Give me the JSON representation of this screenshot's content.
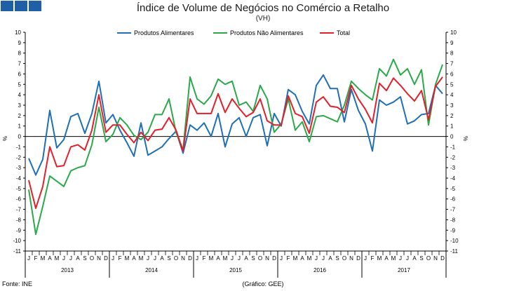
{
  "page": {
    "title": "Índice de Volume de Negócios no Comércio a Retalho",
    "subtitle": "(VH)",
    "source": "Fonte: INE",
    "credit": "(Gráfico: GEE)",
    "logo_color": "#1f5fa8"
  },
  "chart_data": {
    "type": "line",
    "title": "Índice de Volume de Negócios no Comércio a Retalho",
    "subtitle": "(VH)",
    "ylabel_left": "%",
    "ylabel_right": "%",
    "ylim": [
      -11,
      10
    ],
    "yticks": [
      -11,
      -10,
      -9,
      -8,
      -7,
      -6,
      -5,
      -4,
      -3,
      -2,
      -1,
      0,
      1,
      2,
      3,
      4,
      5,
      6,
      7,
      8,
      9,
      10
    ],
    "grid": false,
    "legend_position": "top",
    "month_labels": [
      "J",
      "F",
      "M",
      "A",
      "M",
      "J",
      "J",
      "A",
      "S",
      "O",
      "N",
      "D"
    ],
    "years": [
      "2013",
      "2014",
      "2015",
      "2016",
      "2017"
    ],
    "series": [
      {
        "name": "Produtos Alimentares",
        "color": "#1f6fb5",
        "values": [
          -2.1,
          -3.7,
          -2.2,
          2.5,
          -1.1,
          -0.3,
          1.9,
          2.2,
          0.3,
          2.2,
          5.3,
          1.3,
          2.1,
          0.6,
          -0.6,
          -1.9,
          1.3,
          -1.8,
          -1.4,
          -1.0,
          -0.2,
          0.5,
          -1.6,
          1.1,
          0.6,
          1.3,
          0.0,
          2.2,
          -1.0,
          1.2,
          1.8,
          0.0,
          1.8,
          2.1,
          -0.9,
          2.2,
          1.0,
          4.5,
          4.0,
          2.4,
          1.2,
          4.9,
          5.9,
          4.6,
          4.6,
          1.4,
          4.5,
          2.5,
          1.2,
          -1.4,
          3.5,
          3.0,
          3.3,
          3.8,
          1.2,
          1.5,
          2.1,
          2.2,
          4.9,
          4.1
        ]
      },
      {
        "name": "Produtos Não Alimentares",
        "color": "#2aa84a",
        "values": [
          -5.1,
          -9.4,
          -6.7,
          -3.8,
          -4.3,
          -4.8,
          -3.3,
          -3.0,
          -2.8,
          -0.8,
          2.8,
          -0.5,
          0.2,
          1.8,
          1.1,
          0.1,
          -0.3,
          0.4,
          2.1,
          2.1,
          3.6,
          0.4,
          -1.3,
          5.7,
          3.6,
          3.1,
          3.9,
          5.5,
          5.0,
          5.3,
          3.0,
          3.3,
          2.4,
          4.9,
          3.6,
          0.4,
          1.2,
          3.6,
          0.6,
          1.4,
          -0.5,
          1.9,
          2.0,
          1.7,
          1.4,
          3.0,
          5.3,
          4.6,
          4.0,
          3.5,
          6.5,
          5.8,
          7.4,
          5.9,
          6.5,
          5.0,
          6.4,
          1.1,
          5.0,
          6.9
        ]
      },
      {
        "name": "Total",
        "color": "#e0202a",
        "values": [
          -4.2,
          -6.9,
          -4.8,
          -1.0,
          -2.9,
          -2.8,
          -1.0,
          -0.8,
          -1.3,
          0.6,
          4.0,
          0.4,
          1.1,
          1.1,
          0.2,
          -0.6,
          0.4,
          -0.4,
          0.6,
          0.7,
          1.8,
          0.6,
          -1.4,
          3.6,
          2.2,
          2.2,
          2.2,
          4.1,
          2.3,
          3.6,
          2.7,
          1.9,
          2.3,
          3.6,
          1.5,
          1.1,
          1.1,
          3.9,
          2.2,
          1.9,
          0.3,
          3.3,
          3.8,
          2.9,
          2.8,
          2.3,
          4.9,
          3.6,
          2.6,
          1.3,
          5.1,
          4.4,
          5.6,
          4.9,
          4.1,
          3.4,
          4.4,
          1.6,
          4.8,
          5.7
        ]
      }
    ]
  }
}
